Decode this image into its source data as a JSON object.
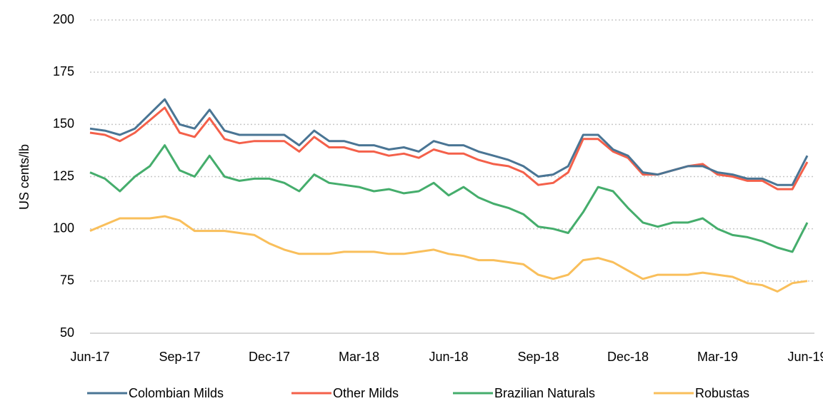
{
  "chart_data": {
    "type": "line",
    "y_label": "US cents/lb",
    "categories": [
      "Jun-17",
      null,
      null,
      null,
      null,
      null,
      "Sep-17",
      null,
      null,
      null,
      null,
      null,
      "Dec-17",
      null,
      null,
      null,
      null,
      null,
      "Mar-18",
      null,
      null,
      null,
      null,
      null,
      "Jun-18",
      null,
      null,
      null,
      null,
      null,
      "Sep-18",
      null,
      null,
      null,
      null,
      null,
      "Dec-18",
      null,
      null,
      null,
      null,
      null,
      "Mar-19",
      null,
      null,
      null,
      null,
      null,
      "Jun-19"
    ],
    "series": [
      {
        "name": "Colombian Milds",
        "color": "#4a7594",
        "values": [
          148,
          147,
          145,
          148,
          155,
          162,
          150,
          148,
          157,
          147,
          145,
          145,
          145,
          145,
          140,
          147,
          142,
          142,
          140,
          140,
          138,
          139,
          137,
          142,
          140,
          140,
          137,
          135,
          133,
          130,
          125,
          126,
          130,
          145,
          145,
          138,
          135,
          127,
          126,
          128,
          130,
          130,
          127,
          126,
          124,
          124,
          121,
          121,
          135
        ]
      },
      {
        "name": "Other Milds",
        "color": "#f4604a",
        "values": [
          146,
          145,
          142,
          146,
          152,
          158,
          146,
          144,
          153,
          143,
          141,
          142,
          142,
          142,
          137,
          144,
          139,
          139,
          137,
          137,
          135,
          136,
          134,
          138,
          136,
          136,
          133,
          131,
          130,
          127,
          121,
          122,
          127,
          143,
          143,
          137,
          134,
          126,
          126,
          128,
          130,
          131,
          126,
          125,
          123,
          123,
          119,
          119,
          132
        ]
      },
      {
        "name": "Brazilian Naturals",
        "color": "#45ad6c",
        "values": [
          127,
          124,
          118,
          125,
          130,
          140,
          128,
          125,
          135,
          125,
          123,
          124,
          124,
          122,
          118,
          126,
          122,
          121,
          120,
          118,
          119,
          117,
          118,
          122,
          116,
          120,
          115,
          112,
          110,
          107,
          101,
          100,
          98,
          108,
          120,
          118,
          110,
          103,
          101,
          103,
          103,
          105,
          100,
          97,
          96,
          94,
          91,
          89,
          103
        ]
      },
      {
        "name": "Robustas",
        "color": "#f9bf5b",
        "values": [
          99,
          102,
          105,
          105,
          105,
          106,
          104,
          99,
          99,
          99,
          98,
          97,
          93,
          90,
          88,
          88,
          88,
          89,
          89,
          89,
          88,
          88,
          89,
          90,
          88,
          87,
          85,
          85,
          84,
          83,
          78,
          76,
          78,
          85,
          86,
          84,
          80,
          76,
          78,
          78,
          78,
          79,
          78,
          77,
          74,
          73,
          70,
          74,
          75
        ]
      }
    ],
    "ylim": [
      50,
      200
    ],
    "yticks": [
      50,
      75,
      100,
      125,
      150,
      175,
      200
    ],
    "grid": true,
    "legend": "bottom"
  }
}
